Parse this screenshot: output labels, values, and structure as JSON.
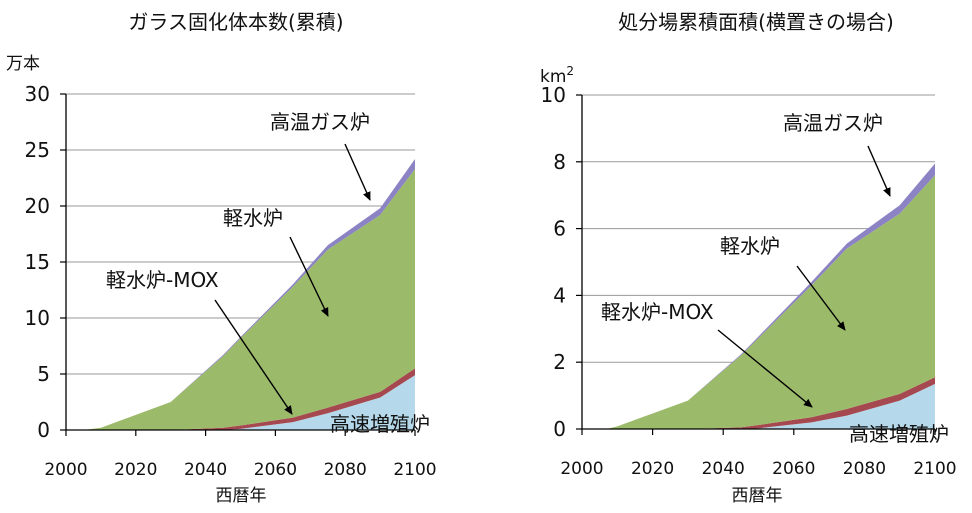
{
  "colors": {
    "fast_breeder": "#b5d9ea",
    "lwr_mox": "#a5484f",
    "lwr": "#9bba6a",
    "htgr": "#8c83c4",
    "grid": "#9a9a9a",
    "axis": "#000000"
  },
  "chart_data": [
    {
      "type": "area",
      "title": "ガラス固化体本数(累積)",
      "ylabel": "万本",
      "xlabel": "西暦年",
      "ylim": [
        0,
        30
      ],
      "xlim": [
        2000,
        2100
      ],
      "x_ticks": [
        2000,
        2020,
        2040,
        2060,
        2080,
        2100
      ],
      "y_ticks": [
        0,
        5,
        10,
        15,
        20,
        25,
        30
      ],
      "grid": true,
      "stacked": true,
      "x": [
        2000,
        2005,
        2010,
        2030,
        2045,
        2050,
        2065,
        2075,
        2090,
        2100
      ],
      "series": [
        {
          "name": "高速増殖炉",
          "color_key": "fast_breeder",
          "values": [
            0,
            0,
            0,
            0,
            0,
            0.1,
            0.7,
            1.5,
            2.9,
            4.9
          ]
        },
        {
          "name": "軽水炉-MOX",
          "color_key": "lwr_mox",
          "values": [
            0,
            0,
            0,
            0,
            0.2,
            0.3,
            0.4,
            0.5,
            0.5,
            0.6
          ]
        },
        {
          "name": "軽水炉",
          "color_key": "lwr",
          "values": [
            0,
            0,
            0.2,
            2.5,
            6.4,
            7.8,
            11.7,
            14.1,
            15.8,
            17.8
          ]
        },
        {
          "name": "高温ガス炉",
          "color_key": "htgr",
          "values": [
            0,
            0,
            0,
            0,
            0.1,
            0.1,
            0.2,
            0.4,
            0.6,
            0.9
          ]
        }
      ],
      "annotations": [
        {
          "text": "高温ガス炉",
          "points_to": "高温ガス炉"
        },
        {
          "text": "軽水炉",
          "points_to": "軽水炉"
        },
        {
          "text": "軽水炉-MOX",
          "points_to": "軽水炉-MOX"
        },
        {
          "text": "高速増殖炉",
          "points_to": "高速増殖炉"
        }
      ]
    },
    {
      "type": "area",
      "title": "処分場累積面積(横置きの場合)",
      "ylabel": "km²",
      "xlabel": "西暦年",
      "ylim": [
        0,
        10
      ],
      "xlim": [
        2000,
        2100
      ],
      "x_ticks": [
        2000,
        2020,
        2040,
        2060,
        2080,
        2100
      ],
      "y_ticks": [
        0,
        2,
        4,
        6,
        8,
        10
      ],
      "grid": true,
      "stacked": true,
      "x": [
        2000,
        2007,
        2010,
        2030,
        2045,
        2050,
        2065,
        2075,
        2090,
        2100
      ],
      "series": [
        {
          "name": "高速増殖炉",
          "color_key": "fast_breeder",
          "values": [
            0,
            0,
            0,
            0,
            0,
            0.02,
            0.2,
            0.4,
            0.85,
            1.35
          ]
        },
        {
          "name": "軽水炉-MOX",
          "color_key": "lwr_mox",
          "values": [
            0,
            0,
            0,
            0,
            0.05,
            0.1,
            0.15,
            0.2,
            0.2,
            0.2
          ]
        },
        {
          "name": "軽水炉",
          "color_key": "lwr",
          "values": [
            0,
            0,
            0.08,
            0.85,
            2.15,
            2.6,
            3.95,
            4.8,
            5.4,
            6.05
          ]
        },
        {
          "name": "高温ガス炉",
          "color_key": "htgr",
          "values": [
            0,
            0,
            0,
            0,
            0.03,
            0.05,
            0.1,
            0.15,
            0.25,
            0.35
          ]
        }
      ],
      "annotations": [
        {
          "text": "高温ガス炉",
          "points_to": "高温ガス炉"
        },
        {
          "text": "軽水炉",
          "points_to": "軽水炉"
        },
        {
          "text": "軽水炉-MOX",
          "points_to": "軽水炉-MOX"
        },
        {
          "text": "高速増殖炉",
          "points_to": "高速増殖炉"
        }
      ]
    }
  ]
}
